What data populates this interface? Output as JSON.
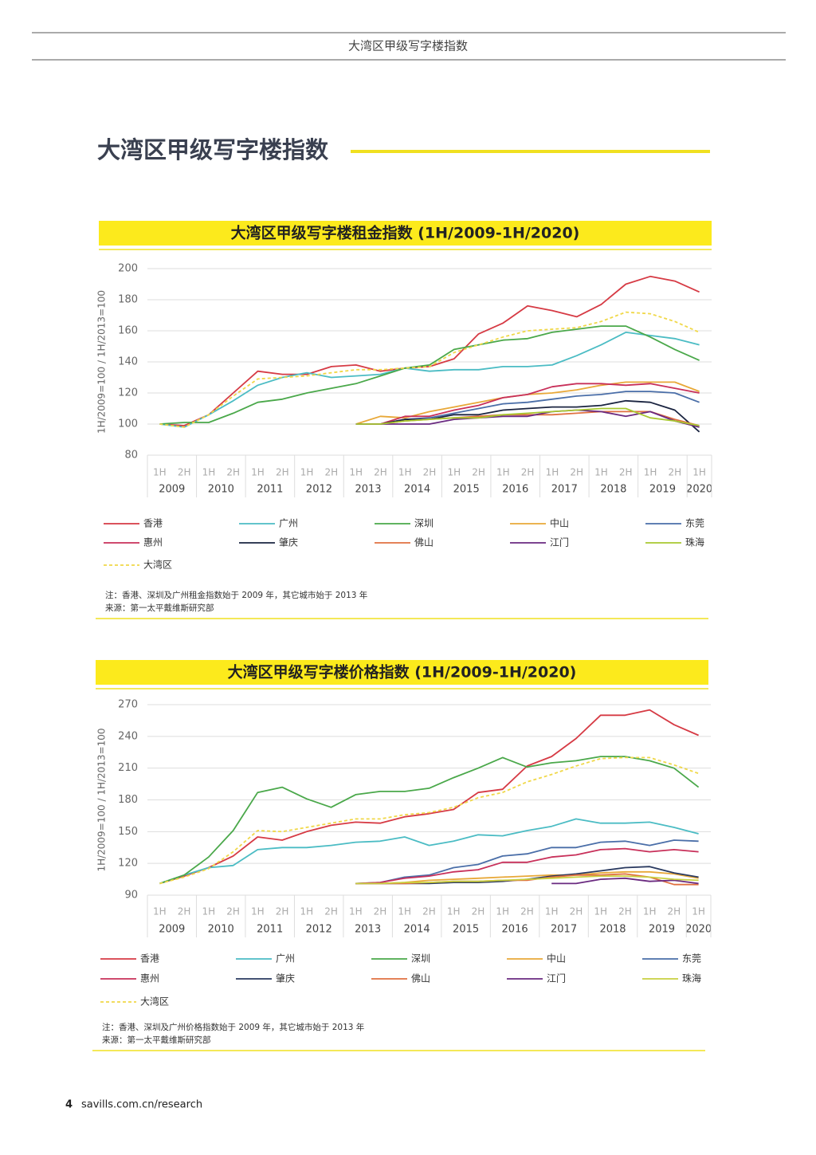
{
  "header": "大湾区甲级写字楼指数",
  "heading": "大湾区甲级写字楼指数",
  "footer": {
    "page": "4",
    "site": "savills.com.cn/research"
  },
  "chart_data": [
    {
      "type": "line",
      "title": "大湾区甲级写字楼租金指数 (1H/2009-1H/2020)",
      "y_label": "1H/2009=100 / 1H/2013=100",
      "categories": [
        "1H",
        "2H",
        "1H",
        "2H",
        "1H",
        "2H",
        "1H",
        "2H",
        "1H",
        "2H",
        "1H",
        "2H",
        "1H",
        "2H",
        "1H",
        "2H",
        "1H",
        "2H",
        "1H",
        "2H",
        "1H",
        "2H",
        "1H"
      ],
      "x_groups": [
        "2009",
        "2010",
        "2011",
        "2012",
        "2013",
        "2014",
        "2015",
        "2016",
        "2017",
        "2018",
        "2019",
        "2020"
      ],
      "ylim": [
        80,
        200
      ],
      "yticks": [
        80,
        100,
        120,
        140,
        160,
        180,
        200
      ],
      "grid": true,
      "series": [
        {
          "name": "香港",
          "color": "#d63a44",
          "values": [
            100,
            99,
            106,
            120,
            134,
            132,
            132,
            137,
            138,
            134,
            136,
            137,
            142,
            158,
            165,
            176,
            173,
            169,
            177,
            190,
            195,
            192,
            185
          ]
        },
        {
          "name": "广州",
          "color": "#4bbcc4",
          "values": [
            100,
            98,
            106,
            115,
            125,
            130,
            133,
            130,
            131,
            132,
            136,
            134,
            135,
            135,
            137,
            137,
            138,
            144,
            151,
            159,
            157,
            155,
            151
          ]
        },
        {
          "name": "深圳",
          "color": "#4aa84a",
          "values": [
            100,
            101,
            101,
            107,
            114,
            116,
            120,
            123,
            126,
            131,
            136,
            138,
            148,
            151,
            154,
            155,
            159,
            161,
            163,
            163,
            156,
            148,
            141
          ]
        },
        {
          "name": "中山",
          "color": "#e8a838",
          "values": [
            null,
            null,
            null,
            null,
            null,
            null,
            null,
            null,
            100,
            105,
            104,
            108,
            111,
            114,
            117,
            119,
            120,
            122,
            125,
            127,
            127,
            127,
            121
          ]
        },
        {
          "name": "东莞",
          "color": "#4a6ea8",
          "values": [
            null,
            null,
            null,
            null,
            null,
            null,
            null,
            null,
            100,
            100,
            103,
            104,
            107,
            110,
            113,
            114,
            116,
            118,
            119,
            121,
            121,
            120,
            114
          ]
        },
        {
          "name": "惠州",
          "color": "#c8305a",
          "values": [
            null,
            null,
            null,
            null,
            null,
            null,
            null,
            null,
            100,
            100,
            105,
            105,
            109,
            112,
            117,
            119,
            124,
            126,
            126,
            125,
            126,
            123,
            120
          ]
        },
        {
          "name": "肇庆",
          "color": "#1a2440",
          "values": [
            null,
            null,
            null,
            null,
            null,
            null,
            null,
            null,
            100,
            100,
            103,
            103,
            106,
            106,
            109,
            110,
            111,
            111,
            112,
            115,
            114,
            109,
            95
          ]
        },
        {
          "name": "佛山",
          "color": "#e07040",
          "values": [
            null,
            null,
            null,
            null,
            null,
            null,
            null,
            null,
            100,
            100,
            102,
            103,
            104,
            105,
            106,
            106,
            106,
            107,
            108,
            108,
            108,
            103,
            99
          ]
        },
        {
          "name": "江门",
          "color": "#6a2a80",
          "values": [
            null,
            null,
            null,
            null,
            null,
            null,
            null,
            null,
            100,
            100,
            100,
            100,
            103,
            104,
            105,
            105,
            108,
            109,
            108,
            105,
            108,
            102,
            98
          ]
        },
        {
          "name": "珠海",
          "color": "#a8c830",
          "values": [
            null,
            null,
            null,
            null,
            null,
            null,
            null,
            null,
            100,
            100,
            102,
            103,
            104,
            104,
            106,
            107,
            108,
            109,
            110,
            110,
            104,
            102,
            99
          ]
        },
        {
          "name": "大湾区",
          "color": "#f0d848",
          "dashed": true,
          "values": [
            100,
            98,
            106,
            118,
            129,
            130,
            131,
            133,
            135,
            135,
            136,
            137,
            146,
            151,
            156,
            160,
            161,
            162,
            166,
            172,
            171,
            166,
            159
          ]
        }
      ],
      "notes": [
        "注：香港、深圳及广州租金指数始于 2009 年，其它城市始于 2013 年",
        "来源：第一太平戴维斯研究部"
      ]
    },
    {
      "type": "line",
      "title": "大湾区甲级写字楼价格指数 (1H/2009-1H/2020)",
      "y_label": "1H/2009=100 / 1H/2013=100",
      "categories": [
        "1H",
        "2H",
        "1H",
        "2H",
        "1H",
        "2H",
        "1H",
        "2H",
        "1H",
        "2H",
        "1H",
        "2H",
        "1H",
        "2H",
        "1H",
        "2H",
        "1H",
        "2H",
        "1H",
        "2H",
        "1H",
        "2H",
        "1H"
      ],
      "x_groups": [
        "2009",
        "2010",
        "2011",
        "2012",
        "2013",
        "2014",
        "2015",
        "2016",
        "2017",
        "2018",
        "2019",
        "2020"
      ],
      "ylim": [
        90,
        270
      ],
      "yticks": [
        90,
        120,
        150,
        180,
        210,
        240,
        270
      ],
      "grid": true,
      "series": [
        {
          "name": "香港",
          "color": "#d63a44",
          "values": [
            101,
            108,
            116,
            127,
            145,
            142,
            150,
            156,
            159,
            158,
            164,
            167,
            171,
            187,
            190,
            212,
            221,
            238,
            260,
            260,
            265,
            251,
            241
          ]
        },
        {
          "name": "广州",
          "color": "#4bbcc4",
          "values": [
            101,
            109,
            116,
            118,
            133,
            135,
            135,
            137,
            140,
            141,
            145,
            137,
            141,
            147,
            146,
            151,
            155,
            162,
            158,
            158,
            159,
            154,
            148
          ]
        },
        {
          "name": "深圳",
          "color": "#4aa84a",
          "values": [
            101,
            109,
            126,
            151,
            187,
            192,
            181,
            173,
            185,
            188,
            188,
            191,
            201,
            210,
            220,
            211,
            215,
            217,
            221,
            221,
            217,
            210,
            192
          ]
        },
        {
          "name": "中山",
          "color": "#e8a838",
          "values": [
            null,
            null,
            null,
            null,
            null,
            null,
            null,
            null,
            101,
            101,
            102,
            104,
            105,
            106,
            107,
            108,
            109,
            109,
            111,
            112,
            112,
            110,
            106
          ]
        },
        {
          "name": "东莞",
          "color": "#4a6ea8",
          "values": [
            null,
            null,
            null,
            null,
            null,
            null,
            null,
            null,
            101,
            102,
            107,
            109,
            116,
            119,
            127,
            129,
            135,
            135,
            140,
            141,
            137,
            142,
            141
          ]
        },
        {
          "name": "惠州",
          "color": "#c8305a",
          "values": [
            null,
            null,
            null,
            null,
            null,
            null,
            null,
            null,
            101,
            102,
            106,
            108,
            112,
            114,
            121,
            121,
            126,
            128,
            133,
            134,
            131,
            133,
            131
          ]
        },
        {
          "name": "肇庆",
          "color": "#2a3a60",
          "values": [
            null,
            null,
            null,
            null,
            null,
            null,
            null,
            null,
            101,
            101,
            101,
            101,
            102,
            102,
            103,
            105,
            108,
            110,
            113,
            116,
            117,
            111,
            107
          ]
        },
        {
          "name": "佛山",
          "color": "#e07040",
          "values": [
            null,
            null,
            null,
            null,
            null,
            null,
            null,
            null,
            101,
            101,
            101,
            102,
            103,
            103,
            104,
            104,
            107,
            109,
            109,
            110,
            107,
            100,
            100
          ]
        },
        {
          "name": "江门",
          "color": "#6a2a80",
          "values": [
            null,
            null,
            null,
            null,
            null,
            null,
            null,
            null,
            null,
            null,
            null,
            null,
            null,
            null,
            null,
            null,
            101,
            101,
            105,
            106,
            103,
            104,
            101
          ]
        },
        {
          "name": "珠海",
          "color": "#c8d040",
          "values": [
            null,
            null,
            null,
            null,
            null,
            null,
            null,
            null,
            101,
            101,
            102,
            102,
            103,
            103,
            104,
            105,
            106,
            107,
            108,
            108,
            107,
            105,
            104
          ]
        },
        {
          "name": "大湾区",
          "color": "#f0d848",
          "dashed": true,
          "values": [
            101,
            107,
            115,
            131,
            151,
            150,
            154,
            158,
            162,
            162,
            166,
            168,
            173,
            182,
            187,
            197,
            204,
            212,
            219,
            220,
            220,
            213,
            205
          ]
        }
      ],
      "notes": [
        "注：香港、深圳及广州价格指数始于 2009 年，其它城市始于 2013 年",
        "来源：第一太平戴维斯研究部"
      ]
    }
  ]
}
